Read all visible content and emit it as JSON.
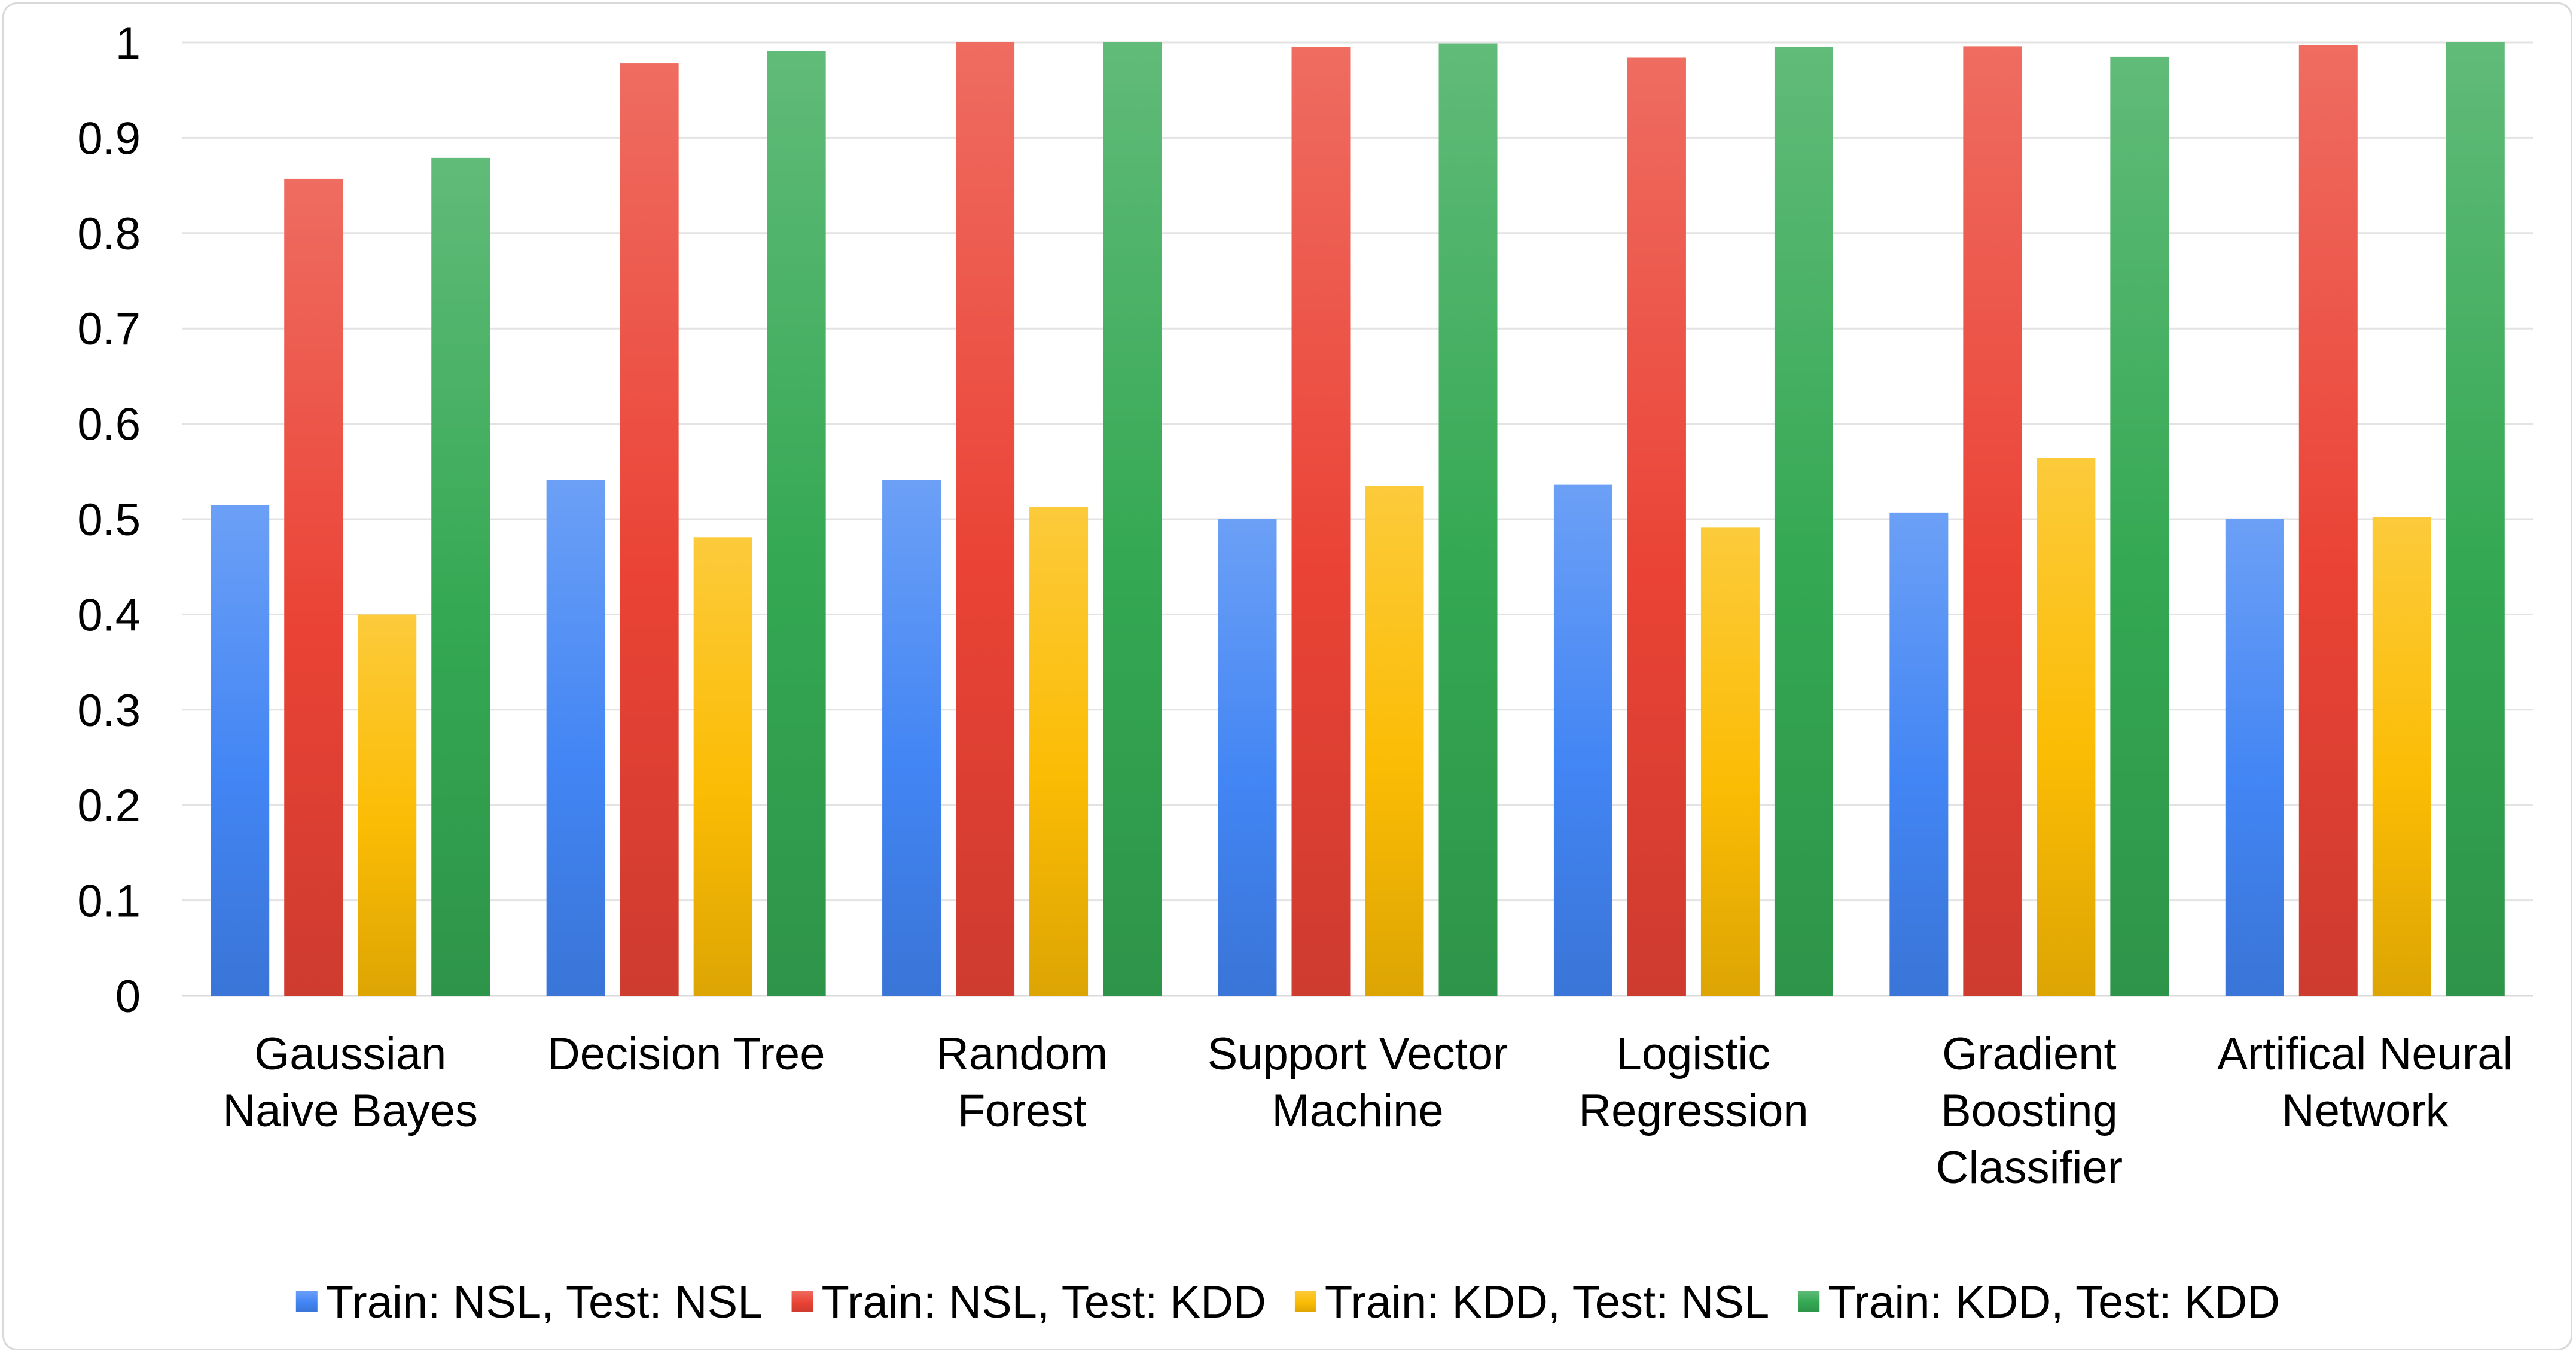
{
  "chart_data": {
    "type": "bar",
    "title": "",
    "xlabel": "",
    "ylabel": "",
    "ylim": [
      0,
      1
    ],
    "yticks": [
      "0",
      "0.1",
      "0.2",
      "0.3",
      "0.4",
      "0.5",
      "0.6",
      "0.7",
      "0.8",
      "0.9",
      "1"
    ],
    "grid": true,
    "legend_position": "bottom",
    "categories": [
      [
        "Gaussian",
        "Naive Bayes"
      ],
      [
        "Decision Tree"
      ],
      [
        "Random",
        "Forest"
      ],
      [
        "Support Vector",
        "Machine"
      ],
      [
        "Logistic",
        "Regression"
      ],
      [
        "Gradient",
        "Boosting",
        "Classifier"
      ],
      [
        "Artifical Neural",
        "Network"
      ]
    ],
    "series": [
      {
        "name": "Train: NSL, Test: NSL",
        "color": "#4285f4",
        "values": [
          0.515,
          0.541,
          0.541,
          0.5,
          0.536,
          0.507,
          0.5
        ]
      },
      {
        "name": "Train: NSL, Test: KDD",
        "color": "#ea4335",
        "values": [
          0.857,
          0.978,
          1.0,
          0.995,
          0.984,
          0.996,
          0.997
        ]
      },
      {
        "name": "Train: KDD, Test: NSL",
        "color": "#fbbc04",
        "values": [
          0.4,
          0.481,
          0.513,
          0.535,
          0.491,
          0.564,
          0.502
        ]
      },
      {
        "name": "Train: KDD, Test: KDD",
        "color": "#34a853",
        "values": [
          0.879,
          0.991,
          1.0,
          0.999,
          0.995,
          0.985,
          1.0
        ]
      }
    ]
  }
}
